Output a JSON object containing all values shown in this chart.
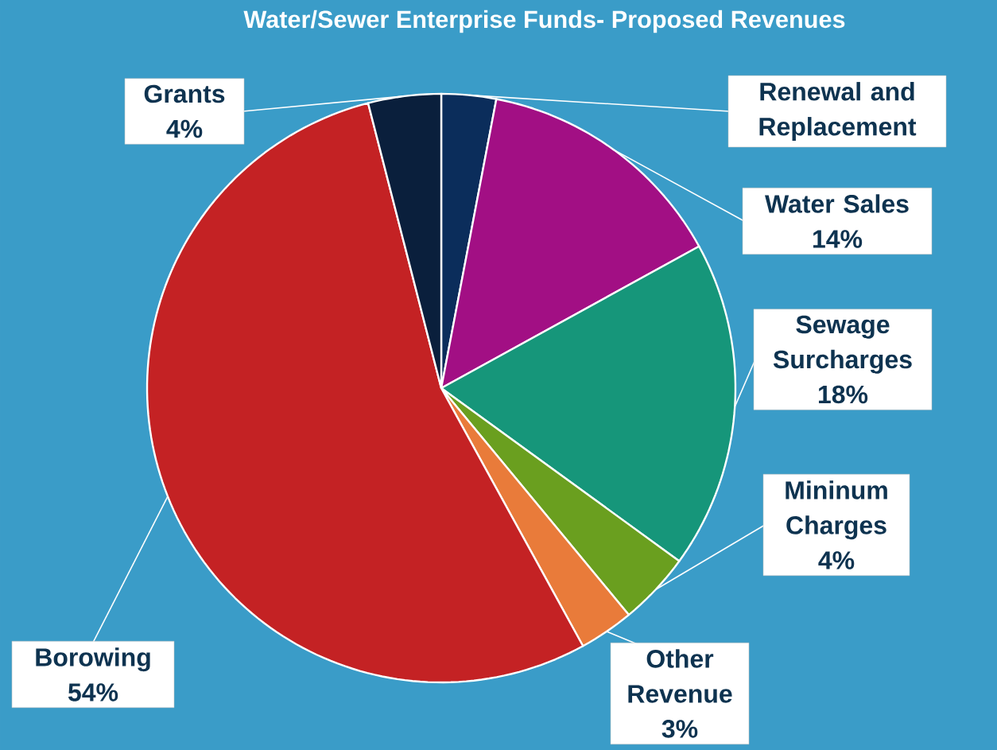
{
  "chart_data": {
    "type": "pie",
    "title": "Water/Sewer Enterprise Funds- Proposed Revenues",
    "categories": [
      "Renewal and Replacement",
      "Water Sales",
      "Sewage Surcharges",
      "Mininum Charges",
      "Other Revenue",
      "Borowing",
      "Grants"
    ],
    "values": [
      3,
      14,
      18,
      4,
      3,
      54,
      4
    ],
    "colors": [
      "#0b2d5b",
      "#a20f84",
      "#16967a",
      "#6a9f1f",
      "#e97b3a",
      "#c42224",
      "#0a1f3c"
    ],
    "value_labels": [
      null,
      "14%",
      "18%",
      "4%",
      "3%",
      "54%",
      "4%"
    ]
  }
}
